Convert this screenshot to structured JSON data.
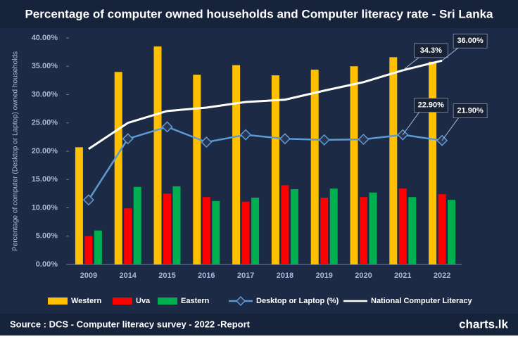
{
  "chart_data": {
    "type": "bar-line",
    "title": "Percentage of computer owned households and Computer literacy rate  - Sri Lanka",
    "y_axis_label": "Percentage of computer (Desktop or Laptop) owned households",
    "categories": [
      "2009",
      "2014",
      "2015",
      "2016",
      "2017",
      "2018",
      "2019",
      "2020",
      "2021",
      "2022"
    ],
    "ylim": [
      0,
      40
    ],
    "yticks": [
      {
        "value": 0,
        "label": "0.00%"
      },
      {
        "value": 5,
        "label": "5.00%"
      },
      {
        "value": 10,
        "label": "10.00%"
      },
      {
        "value": 15,
        "label": "15.00%"
      },
      {
        "value": 20,
        "label": "20.00%"
      },
      {
        "value": 25,
        "label": "25.00%"
      },
      {
        "value": 30,
        "label": "30.00%"
      },
      {
        "value": 35,
        "label": "35.00%"
      },
      {
        "value": 40,
        "label": "40.00%"
      }
    ],
    "grid": false,
    "legend": "bottom",
    "series": [
      {
        "name": "Western",
        "type": "bar",
        "color": "#ffc000",
        "values": [
          20.7,
          34.0,
          38.5,
          33.5,
          35.2,
          33.4,
          34.4,
          35.0,
          36.6,
          35.8
        ]
      },
      {
        "name": "Uva",
        "type": "bar",
        "color": "#ff0000",
        "values": [
          5.0,
          9.9,
          12.5,
          11.9,
          11.1,
          14.0,
          11.8,
          11.9,
          13.4,
          12.4
        ]
      },
      {
        "name": "Eastern",
        "type": "bar",
        "color": "#00b050",
        "values": [
          6.0,
          13.7,
          13.8,
          11.2,
          11.8,
          13.3,
          13.4,
          12.7,
          11.9,
          11.4
        ]
      },
      {
        "name": "Desktop or Laptop (%)",
        "type": "line",
        "marker": "diamond",
        "color": "#5b9bd5",
        "values": [
          11.4,
          22.2,
          24.3,
          21.6,
          22.9,
          22.2,
          22.0,
          22.1,
          22.9,
          21.9
        ],
        "value_labels": [
          null,
          null,
          null,
          null,
          null,
          null,
          null,
          null,
          "22.90%",
          "21.90%"
        ]
      },
      {
        "name": "National Computer Literacy",
        "type": "line",
        "color": "#ffffff",
        "values": [
          20.4,
          25.0,
          27.1,
          27.7,
          28.7,
          29.1,
          30.7,
          32.2,
          34.3,
          36.0
        ],
        "value_labels": [
          null,
          null,
          null,
          null,
          null,
          null,
          null,
          null,
          "34.3%",
          "36.00%"
        ]
      }
    ],
    "source": "Source : DCS - Computer literacy survey - 2022 -Report",
    "brand": "charts.lk"
  }
}
